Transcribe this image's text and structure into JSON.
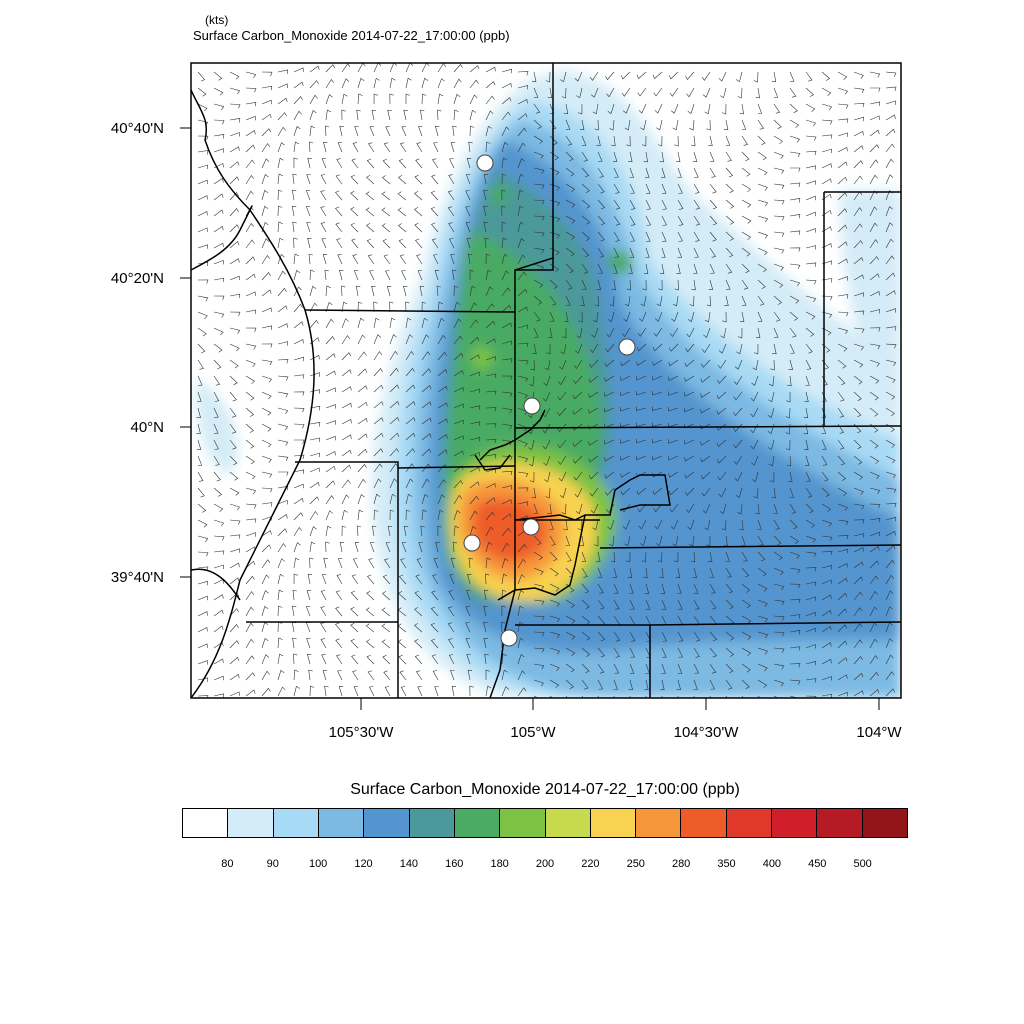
{
  "header": {
    "units": "(kts)",
    "title": "Surface Carbon_Monoxide   2014-07-22_17:00:00   (ppb)"
  },
  "map": {
    "y_ticks": [
      "40°40'N",
      "40°20'N",
      "40°N",
      "39°40'N"
    ],
    "x_ticks": [
      "105°30'W",
      "105°W",
      "104°30'W",
      "104°W"
    ],
    "markers": 6,
    "overlay": "wind barbs"
  },
  "legend": {
    "title": "Surface Carbon_Monoxide   2014-07-22_17:00:00  (ppb)",
    "levels": [
      "80",
      "90",
      "100",
      "120",
      "140",
      "160",
      "180",
      "200",
      "220",
      "250",
      "280",
      "350",
      "400",
      "450",
      "500"
    ],
    "colors": [
      "#ffffff",
      "#d4ecf7",
      "#a8daf5",
      "#7cb9e3",
      "#5595cf",
      "#4b999a",
      "#4aab63",
      "#7dc242",
      "#c6d94f",
      "#f8d250",
      "#f6963a",
      "#ee5c29",
      "#e0382b",
      "#d01e2a",
      "#b51a25",
      "#941519"
    ]
  }
}
